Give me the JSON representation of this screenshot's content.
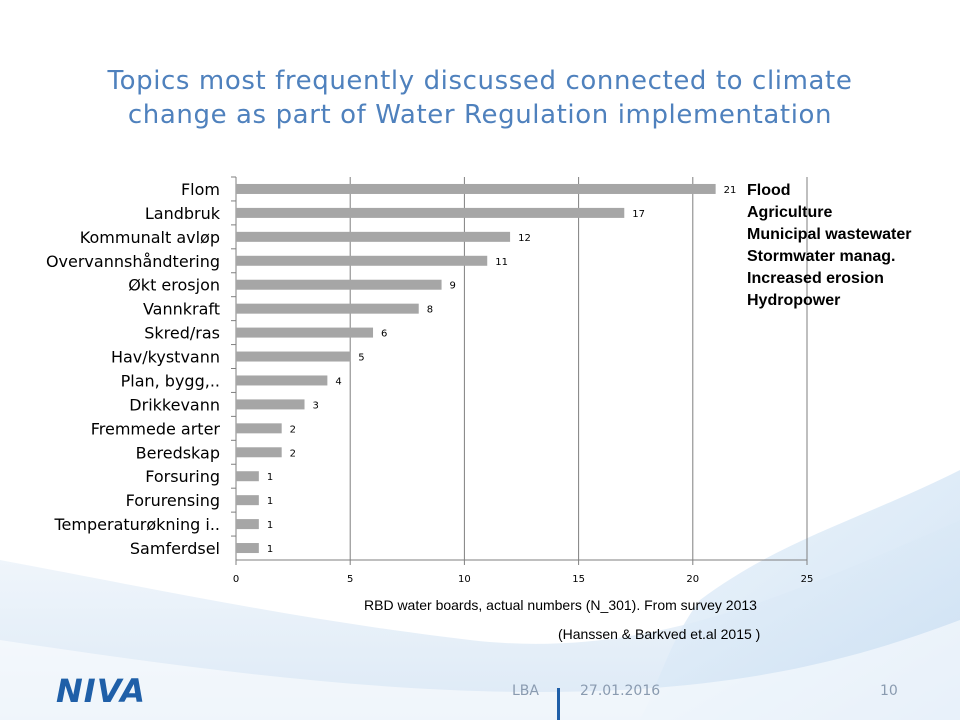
{
  "title_line1": "Topics most frequently discussed connected to climate",
  "title_line2": "change as part of Water Regulation implementation",
  "chart_data": {
    "type": "bar",
    "orientation": "horizontal",
    "categories": [
      "Flom",
      "Landbruk",
      "Kommunalt avløp",
      "Overvannshåndtering",
      "Økt erosjon",
      "Vannkraft",
      "Skred/ras",
      "Hav/kystvann",
      "Plan, bygg,..",
      "Drikkevann",
      "Fremmede arter",
      "Beredskap",
      "Forsuring",
      "Forurensing",
      "Temperaturøkning i..",
      "Samferdsel"
    ],
    "values": [
      21,
      17,
      12,
      11,
      9,
      8,
      6,
      5,
      4,
      3,
      2,
      2,
      1,
      1,
      1,
      1
    ],
    "xlim": [
      0,
      25
    ],
    "xticks": [
      0,
      5,
      10,
      15,
      20,
      25
    ],
    "xlabel": "RBD water boards, actual numbers (N_301). From survey 2013",
    "bar_color": "#a6a6a6",
    "grid": "vertical",
    "data_labels": true
  },
  "english_labels": [
    "Flood",
    "Agriculture",
    "Municipal wastewater",
    "Stormwater manag.",
    "Increased erosion",
    "Hydropower"
  ],
  "citation": "(Hanssen & Barkved et.al 2015 )",
  "logo_text": "NIVA",
  "footer": {
    "author": "LBA",
    "date": "27.01.2016",
    "page": "10"
  },
  "colors": {
    "title": "#4f81bd",
    "logo": "#1f5fa8",
    "footer_text": "#8a9bb0"
  }
}
